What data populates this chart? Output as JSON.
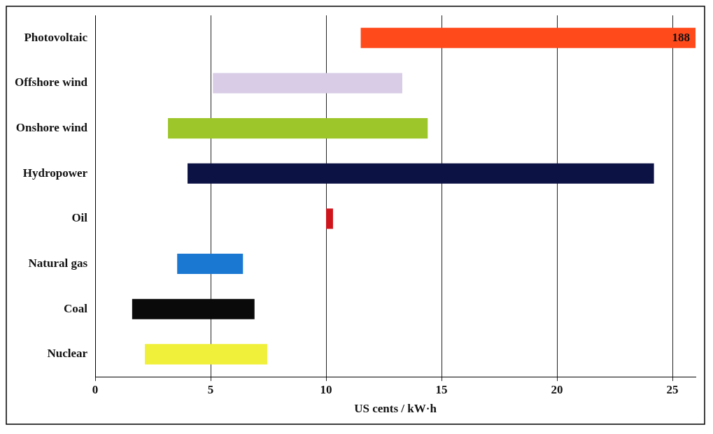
{
  "chart_data": {
    "type": "bar",
    "orientation": "horizontal",
    "xlabel": "US cents / kW·h",
    "categories": [
      "Photovoltaic",
      "Offshore wind",
      "Onshore wind",
      "Hydropower",
      "Oil",
      "Natural gas",
      "Coal",
      "Nuclear"
    ],
    "base": [
      11.5,
      5.1,
      3.15,
      4.0,
      10.0,
      3.55,
      1.6,
      2.15
    ],
    "values": [
      14.5,
      8.2,
      11.25,
      20.2,
      0.3,
      2.85,
      5.3,
      5.3
    ],
    "colors": [
      "#ff4a1c",
      "#d8cce6",
      "#9dc62a",
      "#0d1245",
      "#d0141c",
      "#1a78d2",
      "#0a0a0a",
      "#f0f03a"
    ],
    "xlim": [
      0,
      26
    ],
    "xticks": [
      0,
      5,
      10,
      15,
      20,
      25
    ],
    "grid": "x",
    "legend": false,
    "annotations": [
      "188"
    ]
  }
}
